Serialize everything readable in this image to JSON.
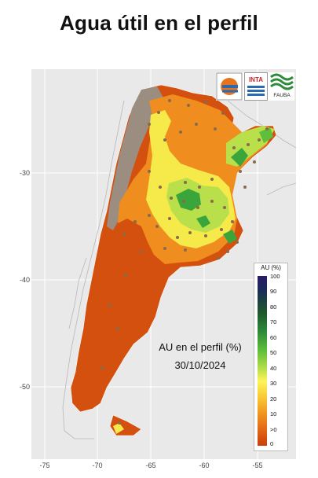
{
  "title": "Agua útil en el perfil",
  "annotation": {
    "line1": "AU en el perfil (%)",
    "line2": "30/10/2024"
  },
  "axes": {
    "x_ticks": [
      "-75",
      "-70",
      "-65",
      "-60",
      "-55"
    ],
    "y_ticks": [
      "-30",
      "-40",
      "-50"
    ]
  },
  "legend": {
    "title": "AU (%)",
    "ticks": [
      "100",
      "90",
      "80",
      "70",
      "60",
      "50",
      "40",
      "30",
      "20",
      "10",
      ">0",
      "0"
    ]
  },
  "logos": {
    "inta": "INTA",
    "fauba": "FAUBA"
  },
  "colors": {
    "background": "#e9e9e9",
    "grid": "#ffffff",
    "dry": "#d4500f",
    "orange": "#ef8d1f",
    "yellow": "#f6ea4a",
    "green": "#3aa53a",
    "no_data": "#9b8e80"
  }
}
